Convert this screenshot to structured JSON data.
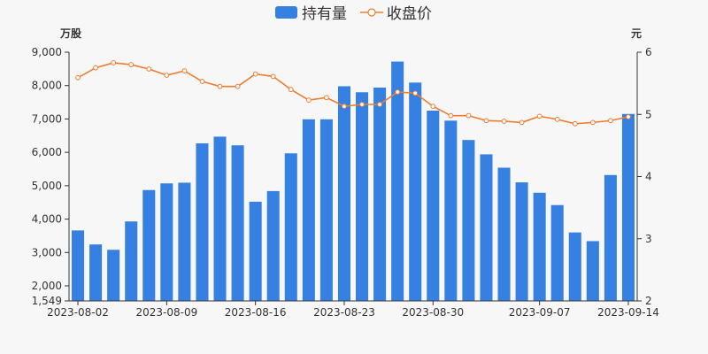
{
  "chart_data": {
    "type": "bar",
    "legend": {
      "position": "top-center",
      "items": [
        {
          "label": "持有量",
          "kind": "bar",
          "color": "#3580e0"
        },
        {
          "label": "收盘价",
          "kind": "line",
          "color": "#ed7d31"
        }
      ]
    },
    "categories": [
      "2023-08-02",
      "2023-08-03",
      "2023-08-04",
      "2023-08-07",
      "2023-08-08",
      "2023-08-09",
      "2023-08-10",
      "2023-08-11",
      "2023-08-14",
      "2023-08-15",
      "2023-08-16",
      "2023-08-17",
      "2023-08-18",
      "2023-08-21",
      "2023-08-22",
      "2023-08-23",
      "2023-08-24",
      "2023-08-25",
      "2023-08-28",
      "2023-08-29",
      "2023-08-30",
      "2023-08-31",
      "2023-09-01",
      "2023-09-04",
      "2023-09-05",
      "2023-09-06",
      "2023-09-07",
      "2023-09-08",
      "2023-09-11",
      "2023-09-12",
      "2023-09-13",
      "2023-09-14"
    ],
    "x_tick_labels": [
      "2023-08-02",
      "2023-08-09",
      "2023-08-16",
      "2023-08-23",
      "2023-08-30",
      "2023-09-07",
      "2023-09-14"
    ],
    "series": [
      {
        "name": "持有量",
        "type": "bar",
        "axis": "left",
        "color": "#3580e0",
        "values": [
          3660,
          3240,
          3080,
          3930,
          4870,
          5070,
          5090,
          6270,
          6470,
          6210,
          4520,
          4840,
          5970,
          6990,
          6990,
          7980,
          7800,
          7940,
          8720,
          8090,
          7250,
          6950,
          6370,
          5940,
          5540,
          5100,
          4790,
          4420,
          3600,
          3340,
          5320,
          7150
        ]
      },
      {
        "name": "收盘价",
        "type": "line",
        "axis": "right",
        "color": "#ed7d31",
        "values": [
          5.59,
          5.75,
          5.83,
          5.8,
          5.73,
          5.63,
          5.7,
          5.53,
          5.45,
          5.45,
          5.65,
          5.61,
          5.4,
          5.23,
          5.27,
          5.13,
          5.16,
          5.16,
          5.36,
          5.34,
          5.13,
          4.98,
          4.98,
          4.9,
          4.89,
          4.87,
          4.97,
          4.92,
          4.85,
          4.87,
          4.9,
          4.96
        ]
      }
    ],
    "y_left": {
      "unit_label": "万股",
      "min": 1549,
      "max": 9000,
      "ticks": [
        1549,
        2000,
        3000,
        4000,
        5000,
        6000,
        7000,
        8000,
        9000
      ],
      "tick_labels": [
        "1,549",
        "2,000",
        "3,000",
        "4,000",
        "5,000",
        "6,000",
        "7,000",
        "8,000",
        "9,000"
      ]
    },
    "y_right": {
      "unit_label": "元",
      "min": 2,
      "max": 6,
      "ticks": [
        2,
        3,
        4,
        5,
        6
      ],
      "tick_labels": [
        "2",
        "3",
        "4",
        "5",
        "6"
      ]
    },
    "grid": false
  }
}
